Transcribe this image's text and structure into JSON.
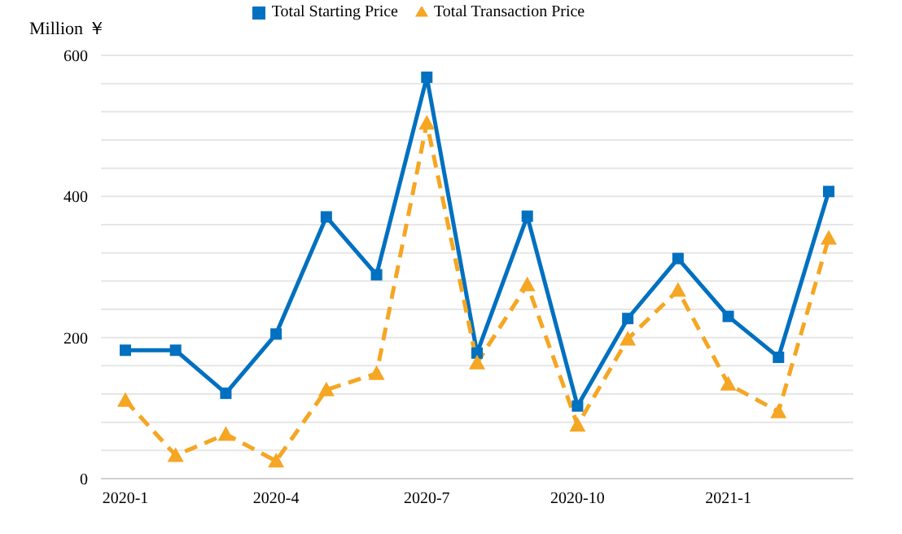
{
  "chart_data": {
    "type": "line",
    "ylabel": "Million ￥",
    "categories": [
      "2020-1",
      null,
      null,
      "2020-4",
      null,
      null,
      "2020-7",
      null,
      null,
      "2020-10",
      null,
      null,
      "2021-1",
      null,
      null
    ],
    "series": [
      {
        "name": "Total Starting Price",
        "color": "#0070c0",
        "marker": "square",
        "line_style": "solid",
        "values": [
          182,
          182,
          121,
          205,
          371,
          289,
          569,
          178,
          372,
          103,
          227,
          312,
          230,
          172,
          407
        ]
      },
      {
        "name": "Total Transaction Price",
        "color": "#f5a623",
        "marker": "triangle",
        "line_style": "dashed",
        "values": [
          111,
          33,
          63,
          25,
          126,
          149,
          504,
          164,
          275,
          76,
          198,
          267,
          134,
          95,
          341
        ]
      }
    ],
    "ylim": [
      0,
      600
    ],
    "yticks": [
      0,
      {
        "value": 40,
        "label": null
      },
      {
        "value": 80,
        "label": null
      },
      {
        "value": 120,
        "label": null
      },
      {
        "value": 160,
        "label": null
      },
      200,
      {
        "value": 240,
        "label": null
      },
      {
        "value": 280,
        "label": null
      },
      {
        "value": 320,
        "label": null
      },
      {
        "value": 360,
        "label": null
      },
      400,
      {
        "value": 440,
        "label": null
      },
      {
        "value": 480,
        "label": null
      },
      {
        "value": 520,
        "label": null
      },
      {
        "value": 560,
        "label": null
      },
      600
    ],
    "grid": "y",
    "legend": "top"
  }
}
